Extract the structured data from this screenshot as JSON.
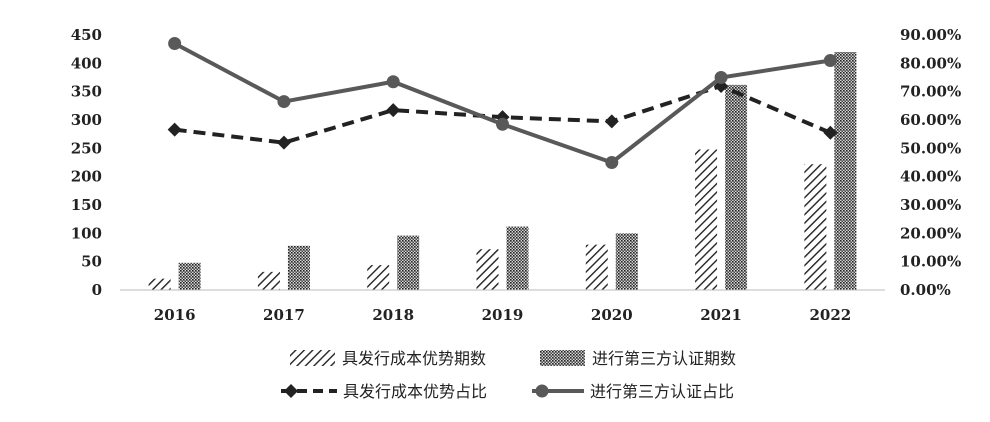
{
  "chart_data": {
    "type": "bar",
    "categories": [
      "2016",
      "2017",
      "2018",
      "2019",
      "2020",
      "2021",
      "2022"
    ],
    "series": [
      {
        "name": "具发行成本优势期数",
        "kind": "bar",
        "axis": "left",
        "pattern": "hatch",
        "values": [
          20,
          32,
          44,
          72,
          80,
          248,
          222
        ]
      },
      {
        "name": "进行第三方认证期数",
        "kind": "bar",
        "axis": "left",
        "pattern": "dots",
        "values": [
          48,
          78,
          96,
          112,
          100,
          362,
          420
        ]
      },
      {
        "name": "具发行成本优势占比",
        "kind": "line",
        "axis": "right",
        "style": "dashed-diamond",
        "values": [
          0.566,
          0.52,
          0.635,
          0.61,
          0.595,
          0.72,
          0.555
        ]
      },
      {
        "name": "进行第三方认证占比",
        "kind": "line",
        "axis": "right",
        "style": "solid-circle",
        "values": [
          0.87,
          0.665,
          0.735,
          0.585,
          0.45,
          0.75,
          0.81
        ]
      }
    ],
    "y_left": {
      "min": 0,
      "max": 450,
      "ticks": [
        "0",
        "50",
        "100",
        "150",
        "200",
        "250",
        "300",
        "350",
        "400",
        "450"
      ]
    },
    "y_right": {
      "min": 0,
      "max": 0.9,
      "ticks": [
        "0.00%",
        "10.00%",
        "20.00%",
        "30.00%",
        "40.00%",
        "50.00%",
        "60.00%",
        "70.00%",
        "80.00%",
        "90.00%"
      ]
    },
    "title": "",
    "xlabel": "",
    "ylabel": "",
    "grid": false,
    "legend_position": "bottom",
    "colors": {
      "bar": "#333333",
      "line": "#595959",
      "dashed": "#222222"
    }
  }
}
